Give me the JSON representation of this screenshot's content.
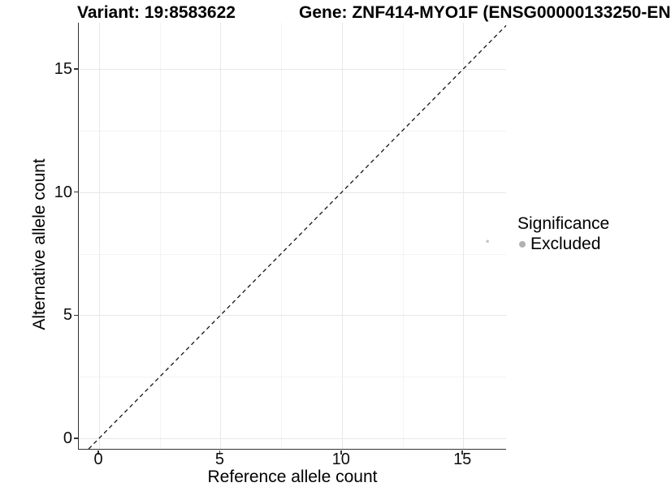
{
  "page": {
    "background": "#ffffff"
  },
  "titles": {
    "left": "Variant: 19:8583622",
    "right": "Gene: ZNF414-MYO1F (ENSG00000133250-EN"
  },
  "axes": {
    "x": {
      "label": "Reference allele count"
    },
    "y": {
      "label": "Alternative allele count"
    }
  },
  "legend": {
    "title": "Significance",
    "items": [
      {
        "label": "Excluded",
        "color": "#b2b2b2"
      }
    ]
  },
  "colors": {
    "axis_line": "#343434",
    "major_grid": "#e8e8e8",
    "minor_grid": "#f3f3f3",
    "reference_line": "#141414",
    "point": "#c6c6c6"
  },
  "chart_data": {
    "type": "scatter",
    "title_left": "Variant: 19:8583622",
    "title_right": "Gene: ZNF414-MYO1F (ENSG00000133250-EN",
    "xlabel": "Reference allele count",
    "ylabel": "Alternative allele count",
    "xlim": [
      -0.85,
      16.77
    ],
    "ylim": [
      -0.43,
      16.88
    ],
    "xticks": [
      0,
      5,
      10,
      15
    ],
    "yticks": [
      0,
      5,
      10,
      15
    ],
    "minor_xticks": [
      2.5,
      7.5,
      12.5
    ],
    "minor_yticks": [
      2.5,
      7.5,
      12.5
    ],
    "grid": "major+minor",
    "points": [
      {
        "x": 16,
        "y": 8,
        "series": "Excluded",
        "color": "#c6c6c6",
        "radius_px": 1.8
      }
    ],
    "reference_line": {
      "type": "identity",
      "slope": 1,
      "intercept": 0,
      "style": "dashed",
      "color": "#141414"
    },
    "legend_position": "right-middle"
  }
}
